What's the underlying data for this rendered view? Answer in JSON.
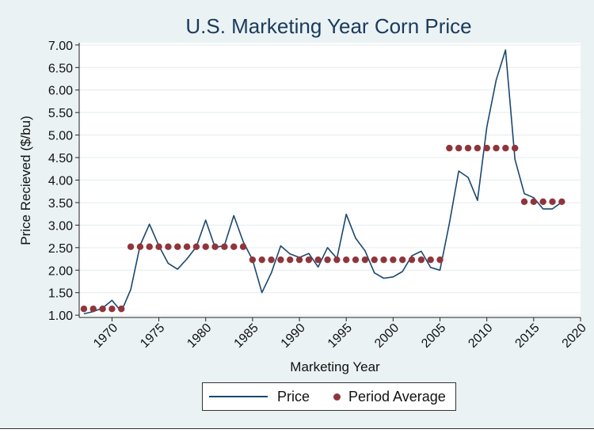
{
  "chart_data": {
    "type": "line",
    "title": "U.S. Marketing Year Corn Price",
    "xlabel": "Marketing Year",
    "ylabel": "Price Recieved ($/bu)",
    "xlim": [
      1966.5,
      2020
    ],
    "ylim": [
      0.95,
      7.05
    ],
    "x_ticks": [
      1970,
      1975,
      1980,
      1985,
      1990,
      1995,
      2000,
      2005,
      2010,
      2015,
      2020
    ],
    "y_ticks": [
      "1.00",
      "1.50",
      "2.00",
      "2.50",
      "3.00",
      "3.50",
      "4.00",
      "4.50",
      "5.00",
      "5.50",
      "6.00",
      "6.50",
      "7.00"
    ],
    "legend": [
      "Price",
      "Period Average"
    ],
    "colors": {
      "price": "#1a476f",
      "average": "#90353b"
    },
    "series": [
      {
        "name": "Price",
        "x": [
          1967,
          1968,
          1969,
          1970,
          1971,
          1972,
          1973,
          1974,
          1975,
          1976,
          1977,
          1978,
          1979,
          1980,
          1981,
          1982,
          1983,
          1984,
          1985,
          1986,
          1987,
          1988,
          1989,
          1990,
          1991,
          1992,
          1993,
          1994,
          1995,
          1996,
          1997,
          1998,
          1999,
          2000,
          2001,
          2002,
          2003,
          2004,
          2005,
          2006,
          2007,
          2008,
          2009,
          2010,
          2011,
          2012,
          2013,
          2014,
          2015,
          2016,
          2017,
          2018
        ],
        "values": [
          1.03,
          1.08,
          1.16,
          1.33,
          1.08,
          1.57,
          2.55,
          3.02,
          2.54,
          2.15,
          2.02,
          2.25,
          2.52,
          3.11,
          2.5,
          2.55,
          3.21,
          2.63,
          2.23,
          1.5,
          1.94,
          2.54,
          2.36,
          2.28,
          2.37,
          2.07,
          2.5,
          2.26,
          3.24,
          2.71,
          2.43,
          1.94,
          1.82,
          1.85,
          1.97,
          2.32,
          2.42,
          2.06,
          2.0,
          3.04,
          4.2,
          4.06,
          3.55,
          5.18,
          6.22,
          6.89,
          4.46,
          3.7,
          3.61,
          3.36,
          3.36,
          3.51
        ]
      },
      {
        "name": "Period Average",
        "x": [
          1967,
          1968,
          1969,
          1970,
          1971,
          1972,
          1973,
          1974,
          1975,
          1976,
          1977,
          1978,
          1979,
          1980,
          1981,
          1982,
          1983,
          1984,
          1985,
          1986,
          1987,
          1988,
          1989,
          1990,
          1991,
          1992,
          1993,
          1994,
          1995,
          1996,
          1997,
          1998,
          1999,
          2000,
          2001,
          2002,
          2003,
          2004,
          2005,
          2006,
          2007,
          2008,
          2009,
          2010,
          2011,
          2012,
          2013,
          2014,
          2015,
          2016,
          2017,
          2018
        ],
        "values": [
          1.14,
          1.14,
          1.14,
          1.14,
          1.14,
          2.52,
          2.52,
          2.52,
          2.52,
          2.52,
          2.52,
          2.52,
          2.52,
          2.52,
          2.52,
          2.52,
          2.52,
          2.52,
          2.23,
          2.23,
          2.23,
          2.23,
          2.23,
          2.23,
          2.23,
          2.23,
          2.23,
          2.23,
          2.23,
          2.23,
          2.23,
          2.23,
          2.23,
          2.23,
          2.23,
          2.23,
          2.23,
          2.23,
          2.23,
          4.71,
          4.71,
          4.71,
          4.71,
          4.71,
          4.71,
          4.71,
          4.71,
          3.52,
          3.52,
          3.52,
          3.52,
          3.52
        ]
      }
    ]
  }
}
